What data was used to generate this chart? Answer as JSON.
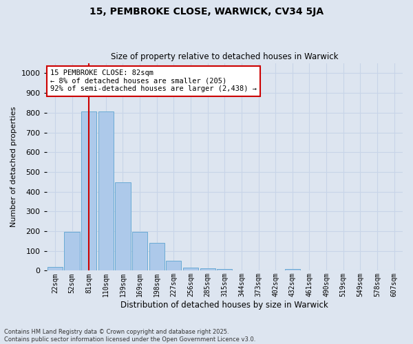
{
  "title1": "15, PEMBROKE CLOSE, WARWICK, CV34 5JA",
  "title2": "Size of property relative to detached houses in Warwick",
  "xlabel": "Distribution of detached houses by size in Warwick",
  "ylabel": "Number of detached properties",
  "categories": [
    "22sqm",
    "52sqm",
    "81sqm",
    "110sqm",
    "139sqm",
    "169sqm",
    "198sqm",
    "227sqm",
    "256sqm",
    "285sqm",
    "315sqm",
    "344sqm",
    "373sqm",
    "402sqm",
    "432sqm",
    "461sqm",
    "490sqm",
    "519sqm",
    "549sqm",
    "578sqm",
    "607sqm"
  ],
  "values": [
    18,
    195,
    808,
    805,
    448,
    198,
    142,
    50,
    15,
    12,
    10,
    0,
    0,
    0,
    10,
    0,
    0,
    0,
    0,
    0,
    0
  ],
  "bar_color": "#adc9ea",
  "bar_edge_color": "#6aaad4",
  "vline_color": "#cc0000",
  "vline_index": 2,
  "annotation_text": "15 PEMBROKE CLOSE: 82sqm\n← 8% of detached houses are smaller (205)\n92% of semi-detached houses are larger (2,438) →",
  "annotation_box_color": "#ffffff",
  "annotation_box_edge": "#cc0000",
  "grid_color": "#c8d4e8",
  "background_color": "#dde5f0",
  "footer": "Contains HM Land Registry data © Crown copyright and database right 2025.\nContains public sector information licensed under the Open Government Licence v3.0.",
  "ylim": [
    0,
    1050
  ],
  "yticks": [
    0,
    100,
    200,
    300,
    400,
    500,
    600,
    700,
    800,
    900,
    1000
  ]
}
